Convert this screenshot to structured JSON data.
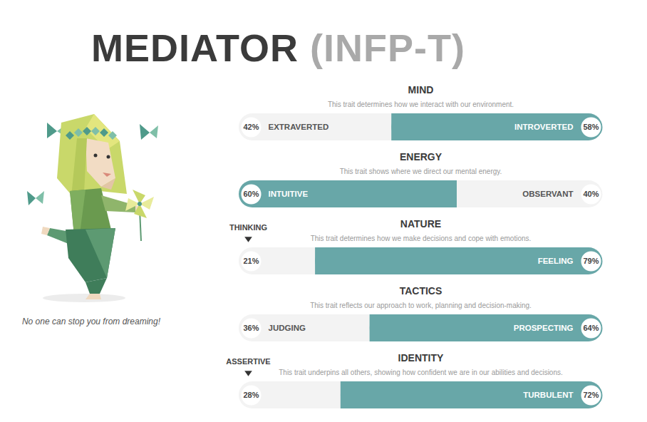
{
  "chart_data": {
    "type": "bar",
    "title": "MEDIATOR (INFP-T)",
    "caption": "No one can stop you from dreaming!",
    "orientation": "horizontal",
    "stacked": true,
    "data_labels": true,
    "tick_labels": false,
    "xlim": [
      0,
      100
    ],
    "categories": [
      "MIND",
      "ENERGY",
      "NATURE",
      "TACTICS",
      "IDENTITY"
    ],
    "descriptions": [
      "This trait determines how we interact with our environment.",
      "This trait shows where we direct our mental energy.",
      "This trait determines how we make decisions and cope with emotions.",
      "This trait reflects our approach to work, planning and decision-making.",
      "This trait underpins all others, showing how confident we are in our abilities and decisions."
    ],
    "series": [
      {
        "labels": [
          "EXTRAVERTED",
          "INTUITIVE",
          "THINKING",
          "JUDGING",
          "ASSERTIVE"
        ],
        "values": [
          42,
          60,
          21,
          36,
          28
        ],
        "value_labels": [
          "42%",
          "60%",
          "21%",
          "36%",
          "28%"
        ],
        "colors": [
          "#f3f3f3",
          "#68a7a8",
          "#f3f3f3",
          "#f3f3f3",
          "#f3f3f3"
        ]
      },
      {
        "labels": [
          "INTROVERTED",
          "OBSERVANT",
          "FEELING",
          "PROSPECTING",
          "TURBULENT"
        ],
        "values": [
          58,
          40,
          79,
          64,
          72
        ],
        "value_labels": [
          "58%",
          "40%",
          "79%",
          "64%",
          "72%"
        ],
        "colors": [
          "#68a7a8",
          "#f3f3f3",
          "#68a7a8",
          "#68a7a8",
          "#68a7a8"
        ]
      }
    ]
  }
}
